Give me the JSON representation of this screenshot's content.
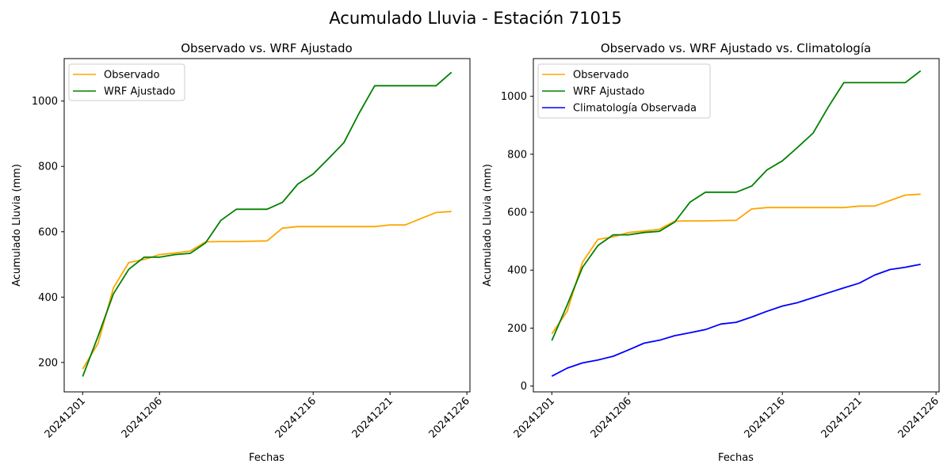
{
  "figure": {
    "suptitle": "Acumulado Lluvia - Estación 71015"
  },
  "colors": {
    "observado": "#ffa500",
    "wrf": "#008000",
    "climatologia": "#0000ff"
  },
  "chart_data": [
    {
      "type": "line",
      "title": "Observado vs. WRF Ajustado",
      "xlabel": "Fechas",
      "ylabel": "Acumulado Lluvia (mm)",
      "x": [
        "20241201",
        "20241202",
        "20241203",
        "20241204",
        "20241205",
        "20241206",
        "20241207",
        "20241208",
        "20241209",
        "20241210",
        "20241211",
        "20241212",
        "20241213",
        "20241214",
        "20241215",
        "20241216",
        "20241217",
        "20241218",
        "20241219",
        "20241220",
        "20241221",
        "20241222",
        "20241223",
        "20241224",
        "20241225"
      ],
      "xticks": [
        "20241201",
        "20241206",
        "20241216",
        "20241221",
        "20241226"
      ],
      "yticks": [
        200,
        400,
        600,
        800,
        1000
      ],
      "ylim": [
        110,
        1130
      ],
      "legend": "top-left",
      "series": [
        {
          "name": "Observado",
          "color": "#ffa500",
          "values": [
            180,
            258,
            428,
            506,
            515,
            530,
            535,
            541,
            569,
            570,
            570,
            571,
            572,
            611,
            616,
            616,
            616,
            616,
            616,
            616,
            621,
            621,
            640,
            659,
            662
          ]
        },
        {
          "name": "WRF Ajustado",
          "color": "#008000",
          "values": [
            157,
            280,
            410,
            485,
            522,
            522,
            530,
            534,
            566,
            635,
            669,
            669,
            669,
            690,
            746,
            777,
            824,
            873,
            964,
            1047,
            1047,
            1047,
            1047,
            1047,
            1088
          ]
        }
      ]
    },
    {
      "type": "line",
      "title": "Observado vs. WRF Ajustado vs. Climatología",
      "xlabel": "Fechas",
      "ylabel": "Acumulado Lluvia (mm)",
      "x": [
        "20241201",
        "20241202",
        "20241203",
        "20241204",
        "20241205",
        "20241206",
        "20241207",
        "20241208",
        "20241209",
        "20241210",
        "20241211",
        "20241212",
        "20241213",
        "20241214",
        "20241215",
        "20241216",
        "20241217",
        "20241218",
        "20241219",
        "20241220",
        "20241221",
        "20241222",
        "20241223",
        "20241224",
        "20241225"
      ],
      "xticks": [
        "20241201",
        "20241206",
        "20241216",
        "20241221",
        "20241226"
      ],
      "yticks": [
        0,
        200,
        400,
        600,
        800,
        1000
      ],
      "ylim": [
        -20,
        1130
      ],
      "legend": "top-left",
      "series": [
        {
          "name": "Observado",
          "color": "#ffa500",
          "values": [
            180,
            258,
            428,
            506,
            515,
            530,
            535,
            541,
            569,
            570,
            570,
            571,
            572,
            611,
            616,
            616,
            616,
            616,
            616,
            616,
            621,
            621,
            640,
            659,
            662
          ]
        },
        {
          "name": "WRF Ajustado",
          "color": "#008000",
          "values": [
            157,
            280,
            410,
            485,
            522,
            522,
            530,
            534,
            566,
            635,
            669,
            669,
            669,
            690,
            746,
            777,
            824,
            873,
            964,
            1047,
            1047,
            1047,
            1047,
            1047,
            1088
          ]
        },
        {
          "name": "Climatología Observada",
          "color": "#0000ff",
          "values": [
            34,
            62,
            80,
            90,
            103,
            125,
            148,
            158,
            174,
            184,
            195,
            214,
            220,
            238,
            258,
            276,
            288,
            305,
            322,
            339,
            355,
            383,
            402,
            410,
            420
          ]
        }
      ]
    }
  ]
}
